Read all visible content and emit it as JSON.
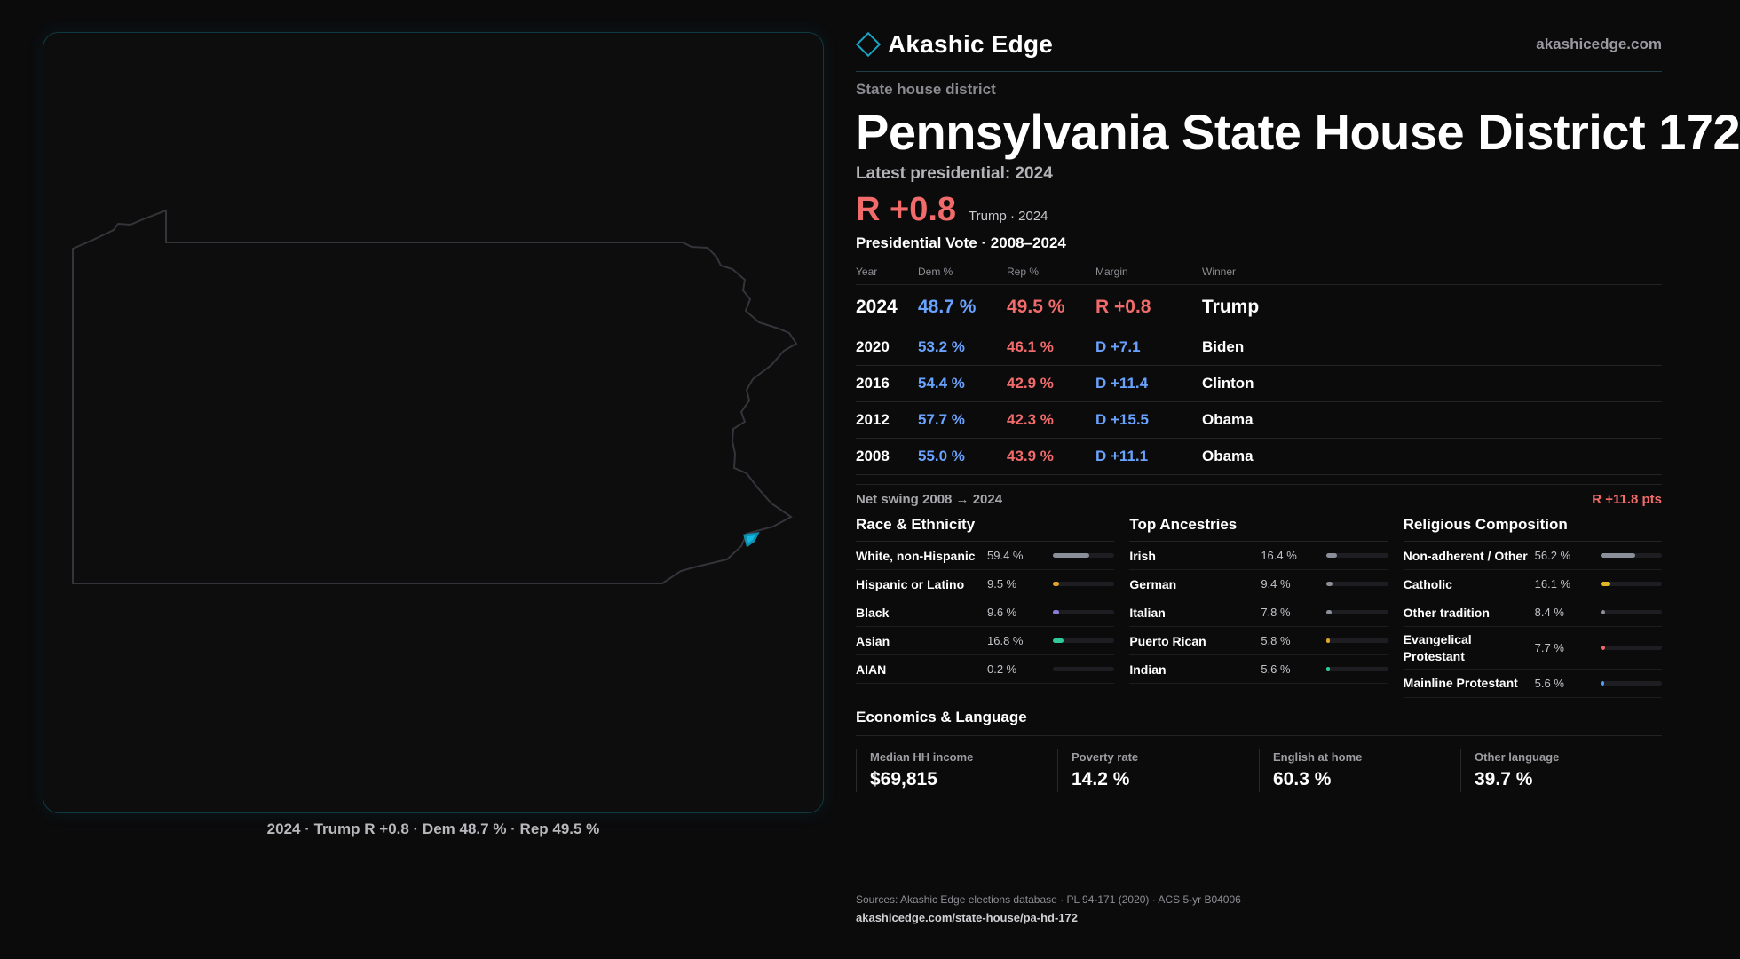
{
  "brand": {
    "name": "Akashic Edge",
    "url": "akashicedge.com"
  },
  "kicker": "State house district",
  "title": "Pennsylvania State House District 172",
  "latest_label": "Latest presidential: 2024",
  "headline": {
    "margin": "R +0.8",
    "sub": "Trump · 2024"
  },
  "vote_heading": "Presidential Vote · 2008–2024",
  "vote_table": {
    "headers": [
      "Year",
      "Dem %",
      "Rep %",
      "Margin",
      "Winner"
    ],
    "rows": [
      {
        "year": "2024",
        "dem": "48.7 %",
        "rep": "49.5 %",
        "margin": "R +0.8",
        "party": "r",
        "winner": "Trump"
      },
      {
        "year": "2020",
        "dem": "53.2 %",
        "rep": "46.1 %",
        "margin": "D +7.1",
        "party": "d",
        "winner": "Biden"
      },
      {
        "year": "2016",
        "dem": "54.4 %",
        "rep": "42.9 %",
        "margin": "D +11.4",
        "party": "d",
        "winner": "Clinton"
      },
      {
        "year": "2012",
        "dem": "57.7 %",
        "rep": "42.3 %",
        "margin": "D +15.5",
        "party": "d",
        "winner": "Obama"
      },
      {
        "year": "2008",
        "dem": "55.0 %",
        "rep": "43.9 %",
        "margin": "D +11.1",
        "party": "d",
        "winner": "Obama"
      }
    ]
  },
  "swing": {
    "label": "Net swing 2008 → 2024",
    "value": "R +11.8 pts"
  },
  "race": {
    "title": "Race & Ethnicity",
    "items": [
      {
        "label": "White, non-Hispanic",
        "value": "59.4 %",
        "fraction": 0.594,
        "color": "#8a8f99"
      },
      {
        "label": "Hispanic or Latino",
        "value": "9.5 %",
        "fraction": 0.095,
        "color": "#e0a526"
      },
      {
        "label": "Black",
        "value": "9.6 %",
        "fraction": 0.096,
        "color": "#8f7bd8"
      },
      {
        "label": "Asian",
        "value": "16.8 %",
        "fraction": 0.168,
        "color": "#2fc99a"
      },
      {
        "label": "AIAN",
        "value": "0.2 %",
        "fraction": 0.002,
        "color": "#8a8f99"
      }
    ]
  },
  "ancestry": {
    "title": "Top Ancestries",
    "items": [
      {
        "label": "Irish",
        "value": "16.4 %",
        "fraction": 0.164,
        "color": "#8a8f99"
      },
      {
        "label": "German",
        "value": "9.4 %",
        "fraction": 0.094,
        "color": "#8a8f99"
      },
      {
        "label": "Italian",
        "value": "7.8 %",
        "fraction": 0.078,
        "color": "#8a8f99"
      },
      {
        "label": "Puerto Rican",
        "value": "5.8 %",
        "fraction": 0.058,
        "color": "#e0a526"
      },
      {
        "label": "Indian",
        "value": "5.6 %",
        "fraction": 0.056,
        "color": "#2fc99a"
      }
    ]
  },
  "religion": {
    "title": "Religious Composition",
    "items": [
      {
        "label": "Non-adherent / Other",
        "value": "56.2 %",
        "fraction": 0.562,
        "color": "#8a8f99"
      },
      {
        "label": "Catholic",
        "value": "16.1 %",
        "fraction": 0.161,
        "color": "#e0b526"
      },
      {
        "label": "Other tradition",
        "value": "8.4 %",
        "fraction": 0.084,
        "color": "#8a8f99"
      },
      {
        "label": "Evangelical Protestant",
        "value": "7.7 %",
        "fraction": 0.077,
        "color": "#f26b6b"
      },
      {
        "label": "Mainline Protestant",
        "value": "5.6 %",
        "fraction": 0.056,
        "color": "#4f9cf2"
      }
    ]
  },
  "economics": {
    "title": "Economics & Language",
    "items": [
      {
        "label": "Median HH income",
        "value": "$69,815"
      },
      {
        "label": "Poverty rate",
        "value": "14.2 %"
      },
      {
        "label": "English at home",
        "value": "60.3 %"
      },
      {
        "label": "Other language",
        "value": "39.7 %"
      }
    ]
  },
  "map_caption": "2024 · Trump R +0.8 · Dem 48.7 % · Rep 49.5 %",
  "sources": {
    "line": "Sources: Akashic Edge elections database · PL 94-171 (2020) · ACS 5-yr B04006",
    "url": "akashicedge.com/state-house/pa-hd-172"
  },
  "colors": {
    "accent": "#1aa4c4",
    "dem": "#6aa3ff",
    "rep": "#f26b6b",
    "district": "#14b8e0"
  }
}
